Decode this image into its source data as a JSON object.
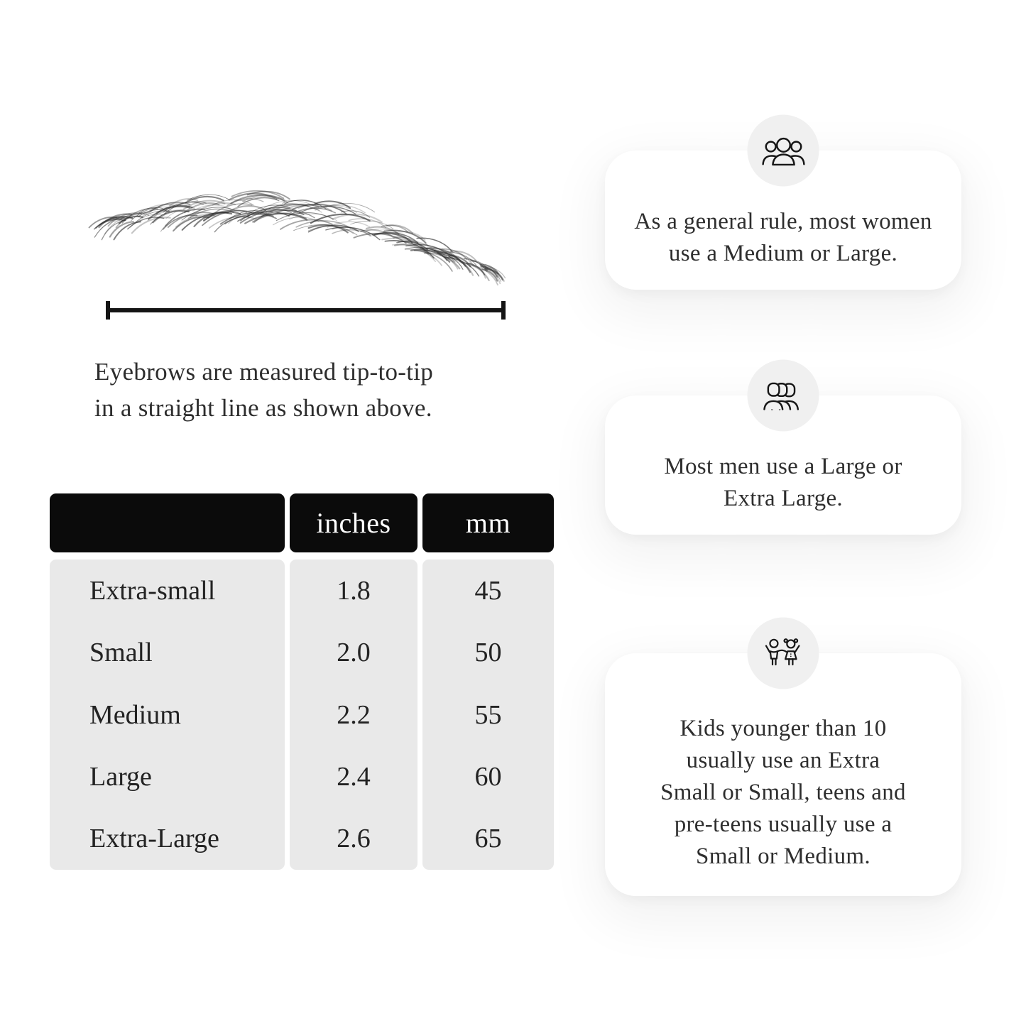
{
  "measurement": {
    "caption": "Eyebrows are measured tip-to-tip\nin a straight line as shown above."
  },
  "size_table": {
    "headers": {
      "size": "",
      "inches": "inches",
      "mm": "mm"
    },
    "rows": [
      {
        "size": "Extra-small",
        "inches": "1.8",
        "mm": "45"
      },
      {
        "size": "Small",
        "inches": "2.0",
        "mm": "50"
      },
      {
        "size": "Medium",
        "inches": "2.2",
        "mm": "55"
      },
      {
        "size": "Large",
        "inches": "2.4",
        "mm": "60"
      },
      {
        "size": "Extra-Large",
        "inches": "2.6",
        "mm": "65"
      }
    ]
  },
  "tips": [
    {
      "icon": "women-group-icon",
      "text": "As a general rule, most women\nuse a Medium or Large."
    },
    {
      "icon": "men-group-icon",
      "text": "Most men use a Large or\nExtra Large."
    },
    {
      "icon": "kids-icon",
      "text": "Kids younger than 10\nusually use an Extra\nSmall or Small, teens and\npre-teens usually use a\nSmall or Medium."
    }
  ],
  "colors": {
    "table_header_bg": "#0b0b0b",
    "table_header_text": "#ffffff",
    "table_body_bg": "#e9e9e9",
    "card_bg": "#ffffff",
    "icon_circle_bg": "#f0f0f0",
    "line_color": "#141414",
    "text_color": "#2e2e2e"
  }
}
